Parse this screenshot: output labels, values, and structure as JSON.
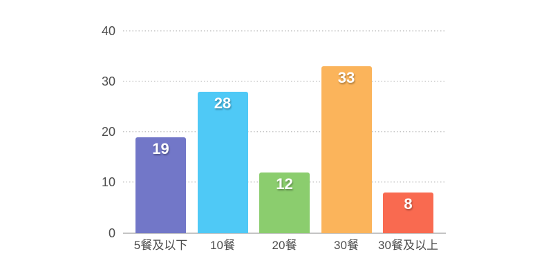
{
  "chart_data": {
    "type": "bar",
    "categories": [
      "5餐及以下",
      "10餐",
      "20餐",
      "30餐",
      "30餐及以上"
    ],
    "values": [
      19,
      28,
      12,
      33,
      8
    ],
    "bar_colors": [
      "#7277c8",
      "#4fc9f6",
      "#8bcd6e",
      "#fbb45b",
      "#f96a50"
    ],
    "title": "",
    "xlabel": "",
    "ylabel": "",
    "ylim": [
      0,
      40
    ],
    "yticks": [
      0,
      10,
      20,
      30,
      40
    ],
    "grid": "horizontal dotted gridlines at each y tick, solid baseline at 0",
    "legend": "none",
    "value_labels": "white bold numbers inside top of each bar"
  },
  "colors": {
    "background": "#ffffff",
    "grid_line": "#c6c6c6",
    "axis_line": "#c4c4c4",
    "axis_text": "#4d4d4d",
    "value_text": "#ffffff"
  }
}
